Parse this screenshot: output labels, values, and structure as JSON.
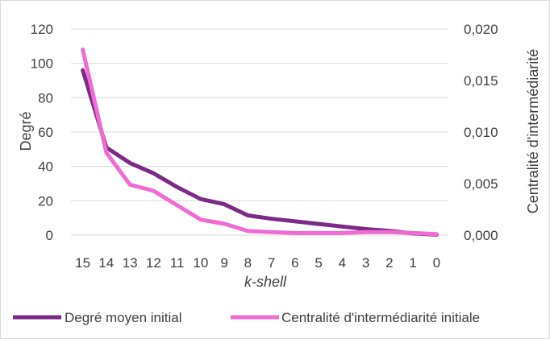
{
  "chart_data": {
    "type": "line",
    "title": "",
    "categories": [
      "15",
      "14",
      "13",
      "12",
      "11",
      "10",
      "9",
      "8",
      "7",
      "6",
      "5",
      "4",
      "3",
      "2",
      "1",
      "0"
    ],
    "xlabel": "k-shell",
    "ylabel": "Degré",
    "y2label": "Centralité d'intermédiarité",
    "ylim": [
      0,
      120
    ],
    "y2lim": [
      0,
      0.02
    ],
    "yticks": [
      "0",
      "20",
      "40",
      "60",
      "80",
      "100",
      "120"
    ],
    "y2ticks": [
      "0,000",
      "0,005",
      "0,010",
      "0,015",
      "0,020"
    ],
    "grid": true,
    "legend_position": "bottom",
    "series": [
      {
        "name": "Degré moyen initial",
        "axis": "left",
        "color": "#7b2a86",
        "values": [
          96,
          51,
          42,
          36,
          28,
          21,
          18,
          11.5,
          9.5,
          8,
          6.5,
          5,
          3.5,
          2.5,
          1,
          0.3
        ]
      },
      {
        "name": "Centralité d'intermédiarité initiale",
        "axis": "right",
        "color": "#f06bd4",
        "values": [
          0.018,
          0.008,
          0.0049,
          0.0043,
          0.0029,
          0.0015,
          0.0011,
          0.0004,
          0.0003,
          0.0002,
          0.0002,
          0.0002,
          0.0003,
          0.0003,
          0.0002,
          0.0001
        ]
      }
    ]
  }
}
